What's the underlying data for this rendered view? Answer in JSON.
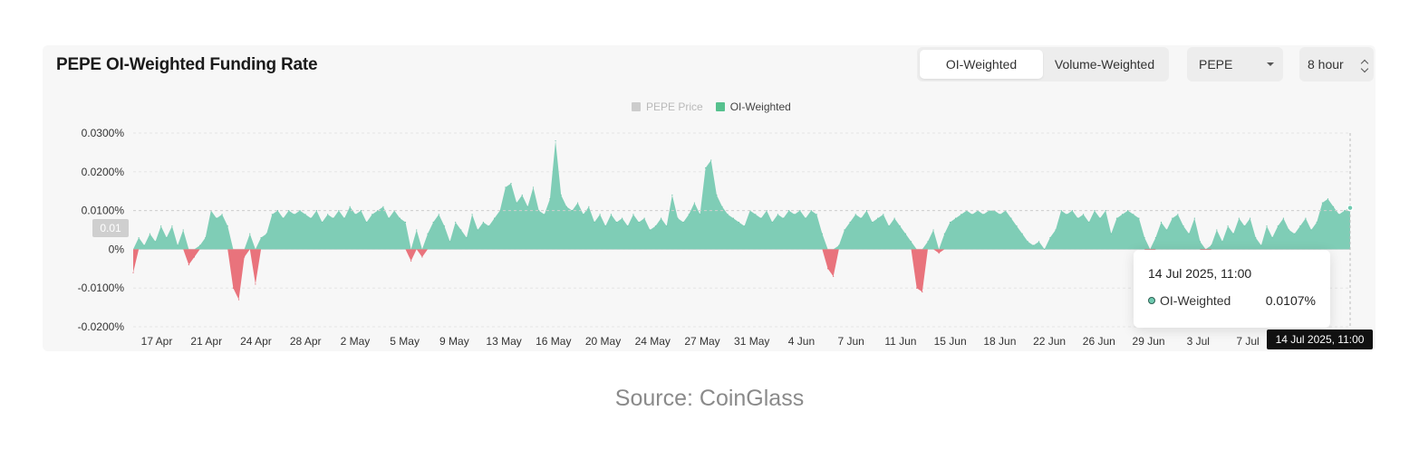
{
  "header": {
    "title": "PEPE OI-Weighted Funding Rate",
    "toggle": [
      "OI-Weighted",
      "Volume-Weighted"
    ],
    "toggle_active": 0,
    "coin": "PEPE",
    "interval": "8 hour"
  },
  "colors": {
    "positive": "#7fcdb6",
    "negative": "#e9737c",
    "price_legend": "#cccccc",
    "oi_legend": "#56c18e"
  },
  "chart_data": {
    "type": "area",
    "title": "PEPE OI-Weighted Funding Rate",
    "unit": "%",
    "ylim": [
      -0.02,
      0.03
    ],
    "yticks": [
      "0.0300%",
      "0.0200%",
      "0.0100%",
      "0%",
      "-0.0100%",
      "-0.0200%"
    ],
    "yticks_values": [
      0.03,
      0.02,
      0.01,
      0,
      -0.01,
      -0.02
    ],
    "xticks": [
      "17 Apr",
      "21 Apr",
      "24 Apr",
      "28 Apr",
      "2 May",
      "5 May",
      "9 May",
      "13 May",
      "16 May",
      "20 May",
      "24 May",
      "27 May",
      "31 May",
      "4 Jun",
      "7 Jun",
      "11 Jun",
      "15 Jun",
      "18 Jun",
      "22 Jun",
      "26 Jun",
      "29 Jun",
      "3 Jul",
      "7 Jul"
    ],
    "legend": [
      "PEPE Price",
      "OI-Weighted"
    ],
    "legend_position": "top-center",
    "grid": true,
    "series": [
      {
        "name": "OI-Weighted",
        "points": [
          [
            0,
            -0.006
          ],
          [
            1,
            0.003
          ],
          [
            2,
            0.001
          ],
          [
            3,
            0.004
          ],
          [
            4,
            0.002
          ],
          [
            5,
            0.006
          ],
          [
            6,
            0.003
          ],
          [
            7,
            0.006
          ],
          [
            8,
            0.001
          ],
          [
            9,
            0.005
          ],
          [
            10,
            -0.004
          ],
          [
            11,
            -0.002
          ],
          [
            12,
            0.001
          ],
          [
            13,
            0.003
          ],
          [
            14,
            0.01
          ],
          [
            15,
            0.008
          ],
          [
            16,
            0.009
          ],
          [
            17,
            0.006
          ],
          [
            18,
            -0.01
          ],
          [
            19,
            -0.013
          ],
          [
            20,
            -0.002
          ],
          [
            21,
            0.004
          ],
          [
            22,
            -0.009
          ],
          [
            23,
            0.003
          ],
          [
            24,
            0.004
          ],
          [
            25,
            0.009
          ],
          [
            26,
            0.01
          ],
          [
            27,
            0.008
          ],
          [
            28,
            0.01
          ],
          [
            29,
            0.009
          ],
          [
            30,
            0.01
          ],
          [
            31,
            0.009
          ],
          [
            32,
            0.008
          ],
          [
            33,
            0.01
          ],
          [
            34,
            0.007
          ],
          [
            35,
            0.009
          ],
          [
            36,
            0.008
          ],
          [
            37,
            0.01
          ],
          [
            38,
            0.008
          ],
          [
            39,
            0.011
          ],
          [
            40,
            0.009
          ],
          [
            41,
            0.01
          ],
          [
            42,
            0.007
          ],
          [
            43,
            0.009
          ],
          [
            44,
            0.01
          ],
          [
            45,
            0.011
          ],
          [
            46,
            0.008
          ],
          [
            47,
            0.01
          ],
          [
            48,
            0.008
          ],
          [
            49,
            0.007
          ],
          [
            50,
            -0.003
          ],
          [
            51,
            0.005
          ],
          [
            52,
            -0.002
          ],
          [
            53,
            0.004
          ],
          [
            54,
            0.007
          ],
          [
            55,
            0.009
          ],
          [
            56,
            0.006
          ],
          [
            57,
            0.002
          ],
          [
            58,
            0.007
          ],
          [
            59,
            0.005
          ],
          [
            60,
            0.003
          ],
          [
            61,
            0.009
          ],
          [
            62,
            0.005
          ],
          [
            63,
            0.007
          ],
          [
            64,
            0.006
          ],
          [
            65,
            0.008
          ],
          [
            66,
            0.01
          ],
          [
            67,
            0.016
          ],
          [
            68,
            0.017
          ],
          [
            69,
            0.012
          ],
          [
            70,
            0.014
          ],
          [
            71,
            0.011
          ],
          [
            72,
            0.016
          ],
          [
            73,
            0.01
          ],
          [
            74,
            0.009
          ],
          [
            75,
            0.013
          ],
          [
            76,
            0.028
          ],
          [
            77,
            0.014
          ],
          [
            78,
            0.011
          ],
          [
            79,
            0.01
          ],
          [
            80,
            0.012
          ],
          [
            81,
            0.009
          ],
          [
            82,
            0.011
          ],
          [
            83,
            0.007
          ],
          [
            84,
            0.009
          ],
          [
            85,
            0.006
          ],
          [
            86,
            0.009
          ],
          [
            87,
            0.007
          ],
          [
            88,
            0.008
          ],
          [
            89,
            0.006
          ],
          [
            90,
            0.009
          ],
          [
            91,
            0.007
          ],
          [
            92,
            0.008
          ],
          [
            93,
            0.005
          ],
          [
            94,
            0.006
          ],
          [
            95,
            0.008
          ],
          [
            96,
            0.006
          ],
          [
            97,
            0.014
          ],
          [
            98,
            0.008
          ],
          [
            99,
            0.007
          ],
          [
            100,
            0.009
          ],
          [
            101,
            0.012
          ],
          [
            102,
            0.009
          ],
          [
            103,
            0.021
          ],
          [
            104,
            0.023
          ],
          [
            105,
            0.014
          ],
          [
            106,
            0.011
          ],
          [
            107,
            0.009
          ],
          [
            108,
            0.008
          ],
          [
            109,
            0.007
          ],
          [
            110,
            0.006
          ],
          [
            111,
            0.01
          ],
          [
            112,
            0.009
          ],
          [
            113,
            0.008
          ],
          [
            114,
            0.01
          ],
          [
            115,
            0.007
          ],
          [
            116,
            0.009
          ],
          [
            117,
            0.008
          ],
          [
            118,
            0.01
          ],
          [
            119,
            0.009
          ],
          [
            120,
            0.01
          ],
          [
            121,
            0.008
          ],
          [
            122,
            0.01
          ],
          [
            123,
            0.009
          ],
          [
            124,
            0.004
          ],
          [
            125,
            -0.005
          ],
          [
            126,
            -0.007
          ],
          [
            127,
            0.001
          ],
          [
            128,
            0.005
          ],
          [
            129,
            0.007
          ],
          [
            130,
            0.009
          ],
          [
            131,
            0.008
          ],
          [
            132,
            0.01
          ],
          [
            133,
            0.007
          ],
          [
            134,
            0.008
          ],
          [
            135,
            0.009
          ],
          [
            136,
            0.006
          ],
          [
            137,
            0.008
          ],
          [
            138,
            0.006
          ],
          [
            139,
            0.004
          ],
          [
            140,
            0.002
          ],
          [
            141,
            -0.01
          ],
          [
            142,
            -0.011
          ],
          [
            143,
            0.002
          ],
          [
            144,
            0.005
          ],
          [
            145,
            -0.001
          ],
          [
            146,
            0.004
          ],
          [
            147,
            0.007
          ],
          [
            148,
            0.008
          ],
          [
            149,
            0.009
          ],
          [
            150,
            0.01
          ],
          [
            151,
            0.009
          ],
          [
            152,
            0.01
          ],
          [
            153,
            0.009
          ],
          [
            154,
            0.01
          ],
          [
            155,
            0.01
          ],
          [
            156,
            0.009
          ],
          [
            157,
            0.01
          ],
          [
            158,
            0.008
          ],
          [
            159,
            0.006
          ],
          [
            160,
            0.004
          ],
          [
            161,
            0.002
          ],
          [
            162,
            0.001
          ],
          [
            163,
            0.002
          ],
          [
            164,
            0.0
          ],
          [
            165,
            0.003
          ],
          [
            166,
            0.005
          ],
          [
            167,
            0.01
          ],
          [
            168,
            0.009
          ],
          [
            169,
            0.01
          ],
          [
            170,
            0.008
          ],
          [
            171,
            0.009
          ],
          [
            172,
            0.007
          ],
          [
            173,
            0.01
          ],
          [
            174,
            0.008
          ],
          [
            175,
            0.01
          ],
          [
            176,
            0.004
          ],
          [
            177,
            0.008
          ],
          [
            178,
            0.009
          ],
          [
            179,
            0.01
          ],
          [
            180,
            0.009
          ],
          [
            181,
            0.008
          ],
          [
            182,
            0.003
          ],
          [
            183,
            -0.004
          ],
          [
            184,
            0.003
          ],
          [
            185,
            0.007
          ],
          [
            186,
            0.005
          ],
          [
            187,
            0.008
          ],
          [
            188,
            0.009
          ],
          [
            189,
            0.006
          ],
          [
            190,
            0.004
          ],
          [
            191,
            0.008
          ],
          [
            192,
            0.002
          ],
          [
            193,
            -0.008
          ],
          [
            194,
            0.001
          ],
          [
            195,
            0.005
          ],
          [
            196,
            0.002
          ],
          [
            197,
            0.006
          ],
          [
            198,
            0.004
          ],
          [
            199,
            0.008
          ],
          [
            200,
            0.006
          ],
          [
            201,
            0.008
          ],
          [
            202,
            0.003
          ],
          [
            203,
            0.001
          ],
          [
            204,
            0.006
          ],
          [
            205,
            0.003
          ],
          [
            206,
            0.006
          ],
          [
            207,
            0.008
          ],
          [
            208,
            0.005
          ],
          [
            209,
            0.004
          ],
          [
            210,
            0.006
          ],
          [
            211,
            0.008
          ],
          [
            212,
            0.005
          ],
          [
            213,
            0.007
          ],
          [
            214,
            0.012
          ],
          [
            215,
            0.013
          ],
          [
            216,
            0.011
          ],
          [
            217,
            0.009
          ],
          [
            218,
            0.01
          ],
          [
            219,
            0.0107
          ]
        ]
      }
    ],
    "hover": {
      "date": "14 Jul 2025, 11:00",
      "series": "OI-Weighted",
      "value": "0.0107%",
      "y_label": "0.01"
    }
  },
  "caption": "Source: CoinGlass"
}
